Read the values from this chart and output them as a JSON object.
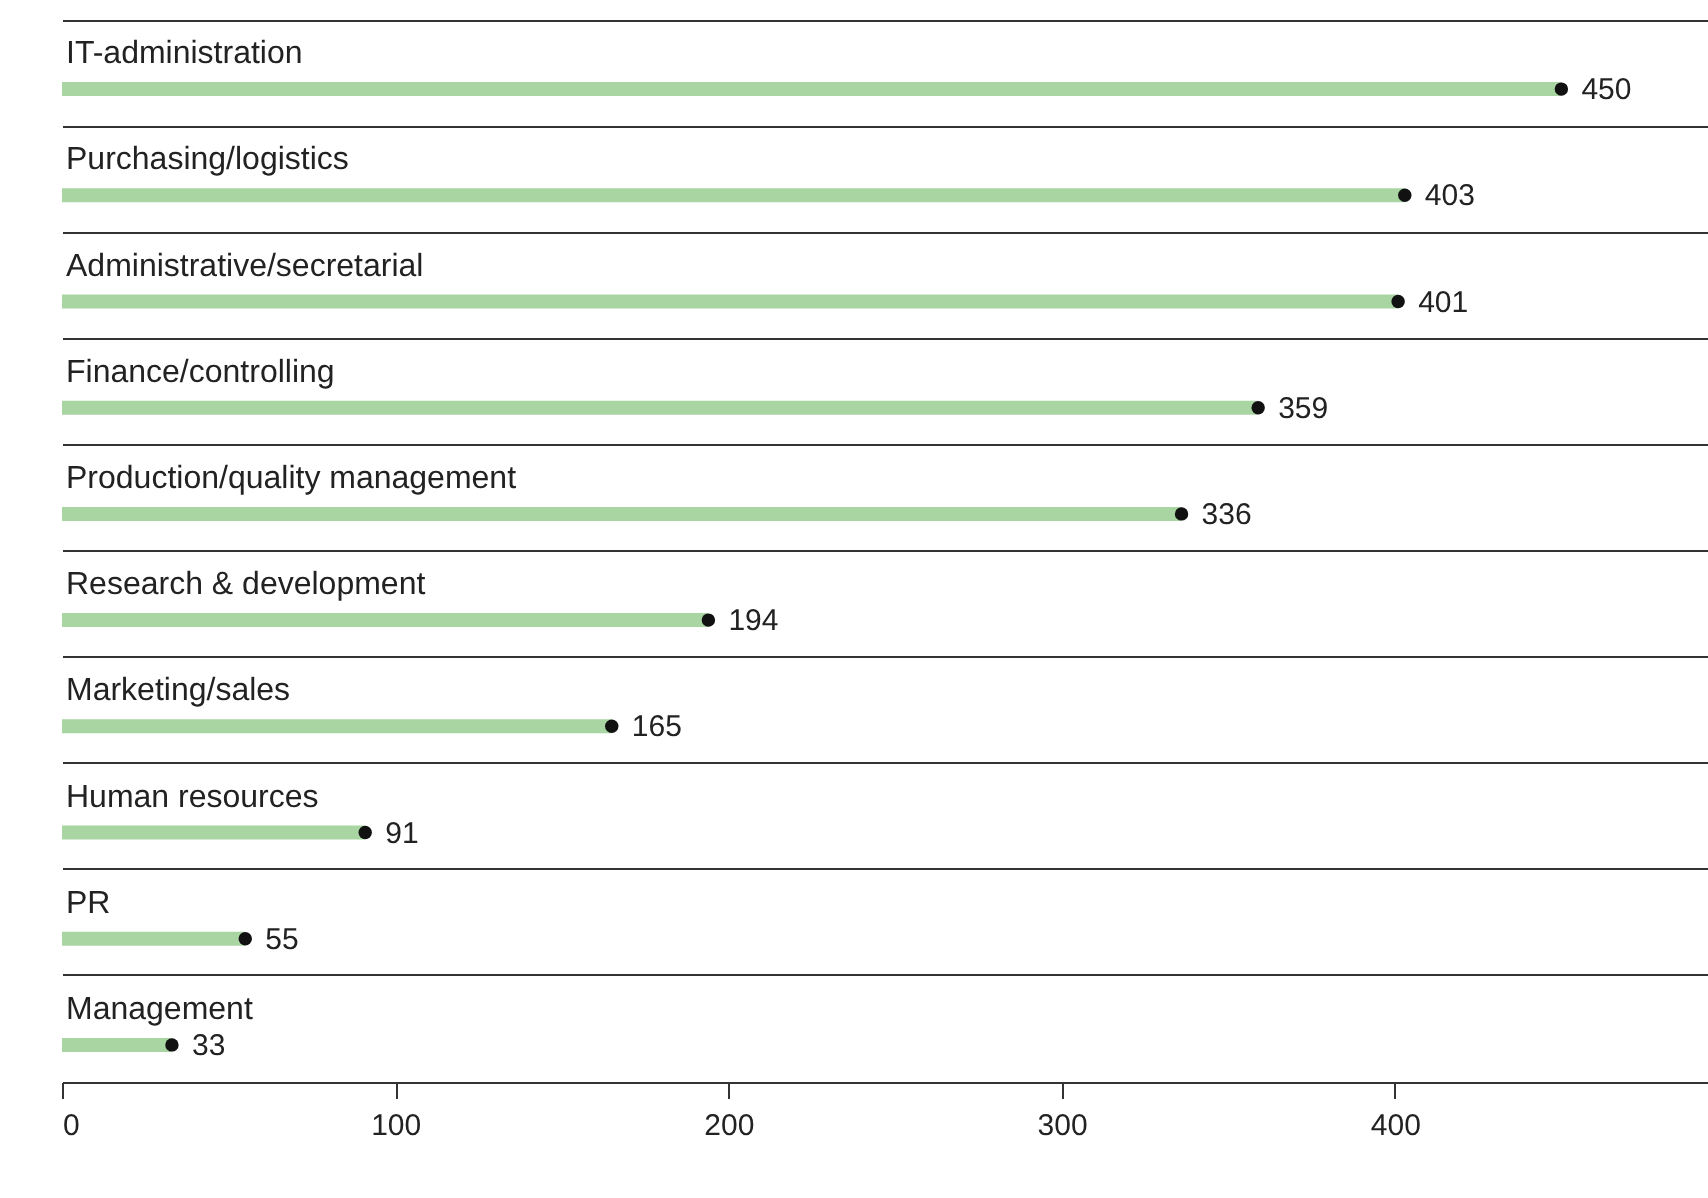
{
  "chart_data": {
    "type": "bar",
    "orientation": "horizontal",
    "categories": [
      "IT-administration",
      "Purchasing/logistics",
      "Administrative/secretarial",
      "Finance/controlling",
      "Production/quality management",
      "Research & development",
      "Marketing/sales",
      "Human resources",
      "PR",
      "Management"
    ],
    "series": [
      {
        "color": "#a8d5a2",
        "values": [
          450,
          403,
          401,
          359,
          336,
          194,
          165,
          91,
          55,
          33
        ]
      },
      {
        "type": "scatter",
        "marker": "circle",
        "color": "#111111",
        "values": [
          450,
          403,
          401,
          359,
          336,
          194,
          165,
          91,
          55,
          33
        ],
        "value_labels": [
          "450",
          "403",
          "401",
          "359",
          "336",
          "194",
          "165",
          "91",
          "55",
          "33"
        ]
      }
    ],
    "grid": "y",
    "xlim": [
      0,
      494
    ],
    "xticks": [
      0,
      100,
      200,
      300,
      400
    ]
  }
}
